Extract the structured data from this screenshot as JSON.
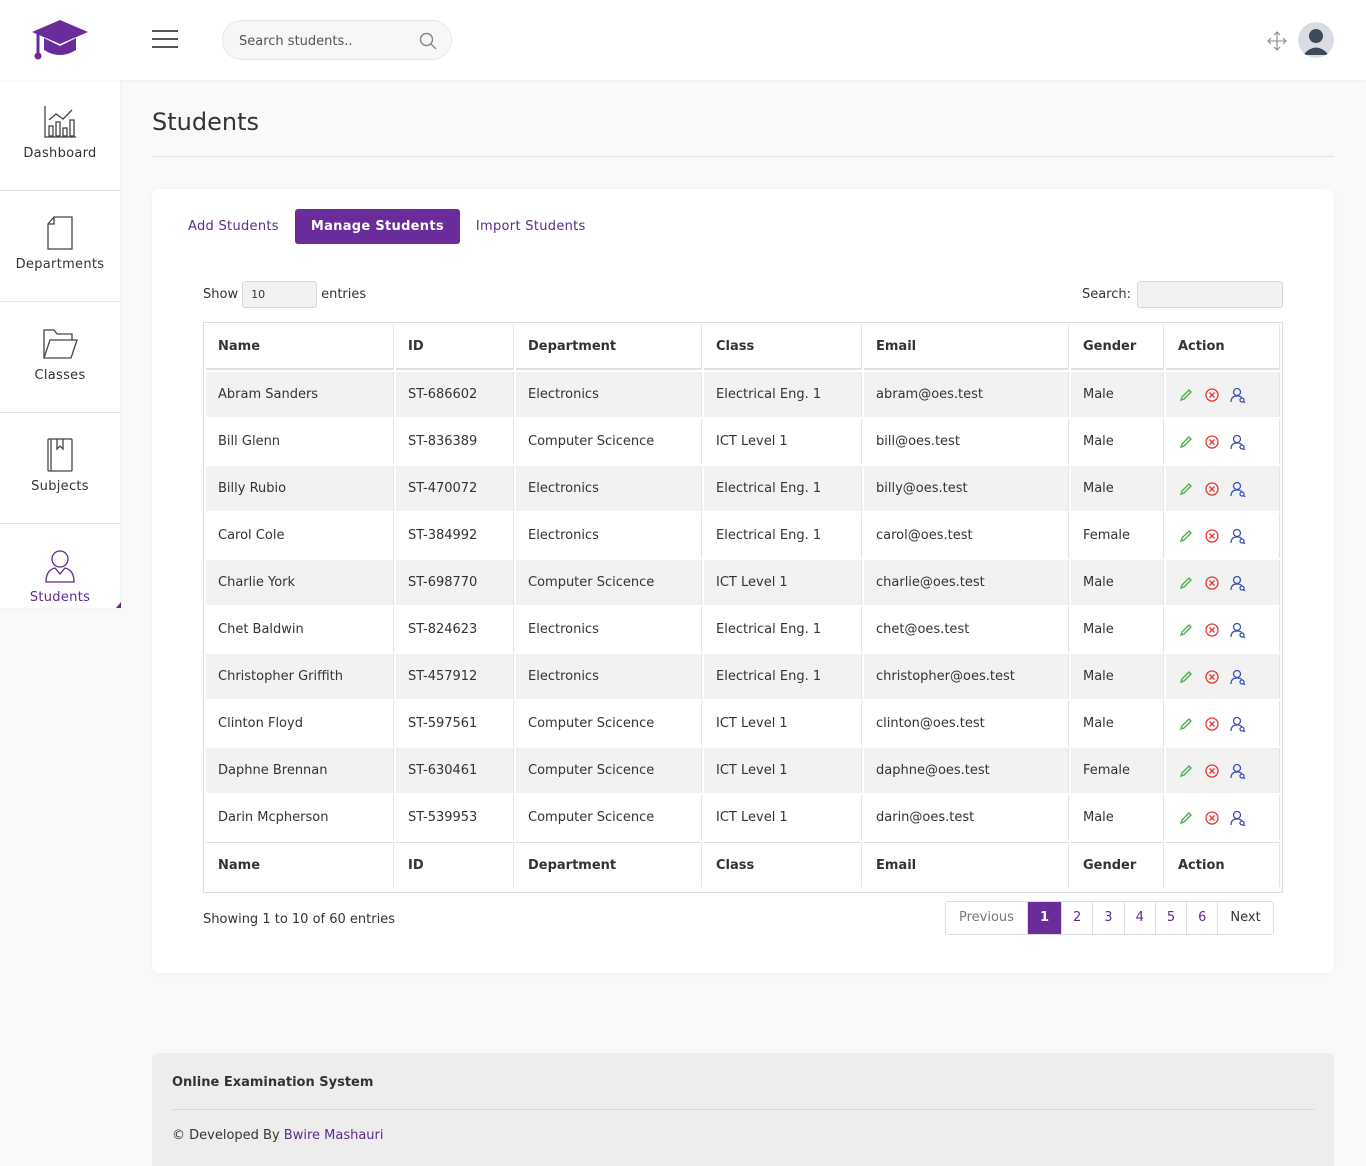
{
  "colors": {
    "brand": "#6a2c9b",
    "edit": "#4caf50",
    "delete": "#e53935",
    "view": "#3f51b5"
  },
  "header": {
    "search_placeholder": "Search students..",
    "icons": [
      "graduation-cap-logo",
      "hamburger-menu-icon",
      "search-icon",
      "fullscreen-icon",
      "avatar"
    ]
  },
  "sidebar": {
    "items": [
      {
        "label": "Dashboard",
        "icon": "chart-icon"
      },
      {
        "label": "Departments",
        "icon": "document-icon"
      },
      {
        "label": "Classes",
        "icon": "folder-icon"
      },
      {
        "label": "Subjects",
        "icon": "book-icon"
      },
      {
        "label": "Students",
        "icon": "user-icon",
        "active": true
      }
    ]
  },
  "page": {
    "title": "Students"
  },
  "tabs": [
    {
      "label": "Add Students"
    },
    {
      "label": "Manage Students",
      "active": true
    },
    {
      "label": "Import Students"
    }
  ],
  "table": {
    "show_label": "Show",
    "entries_label": "entries",
    "length_value": "10",
    "search_label": "Search:",
    "columns": [
      "Name",
      "ID",
      "Department",
      "Class",
      "Email",
      "Gender",
      "Action"
    ],
    "rows": [
      {
        "name": "Abram Sanders",
        "id": "ST-686602",
        "department": "Electronics",
        "class": "Electrical Eng. 1",
        "email": "abram@oes.test",
        "gender": "Male"
      },
      {
        "name": "Bill Glenn",
        "id": "ST-836389",
        "department": "Computer Scicence",
        "class": "ICT Level 1",
        "email": "bill@oes.test",
        "gender": "Male"
      },
      {
        "name": "Billy Rubio",
        "id": "ST-470072",
        "department": "Electronics",
        "class": "Electrical Eng. 1",
        "email": "billy@oes.test",
        "gender": "Male"
      },
      {
        "name": "Carol Cole",
        "id": "ST-384992",
        "department": "Electronics",
        "class": "Electrical Eng. 1",
        "email": "carol@oes.test",
        "gender": "Female"
      },
      {
        "name": "Charlie York",
        "id": "ST-698770",
        "department": "Computer Scicence",
        "class": "ICT Level 1",
        "email": "charlie@oes.test",
        "gender": "Male"
      },
      {
        "name": "Chet Baldwin",
        "id": "ST-824623",
        "department": "Electronics",
        "class": "Electrical Eng. 1",
        "email": "chet@oes.test",
        "gender": "Male"
      },
      {
        "name": "Christopher Griffith",
        "id": "ST-457912",
        "department": "Electronics",
        "class": "Electrical Eng. 1",
        "email": "christopher@oes.test",
        "gender": "Male"
      },
      {
        "name": "Clinton Floyd",
        "id": "ST-597561",
        "department": "Computer Scicence",
        "class": "ICT Level 1",
        "email": "clinton@oes.test",
        "gender": "Male"
      },
      {
        "name": "Daphne Brennan",
        "id": "ST-630461",
        "department": "Computer Scicence",
        "class": "ICT Level 1",
        "email": "daphne@oes.test",
        "gender": "Female"
      },
      {
        "name": "Darin Mcpherson",
        "id": "ST-539953",
        "department": "Computer Scicence",
        "class": "ICT Level 1",
        "email": "darin@oes.test",
        "gender": "Male"
      }
    ],
    "info": "Showing 1 to 10 of 60 entries"
  },
  "pagination": {
    "previous": "Previous",
    "pages": [
      "1",
      "2",
      "3",
      "4",
      "5",
      "6"
    ],
    "current": "1",
    "next": "Next"
  },
  "footer": {
    "title": "Online Examination System",
    "developed_by": "© Developed By",
    "author": "Bwire Mashauri"
  }
}
